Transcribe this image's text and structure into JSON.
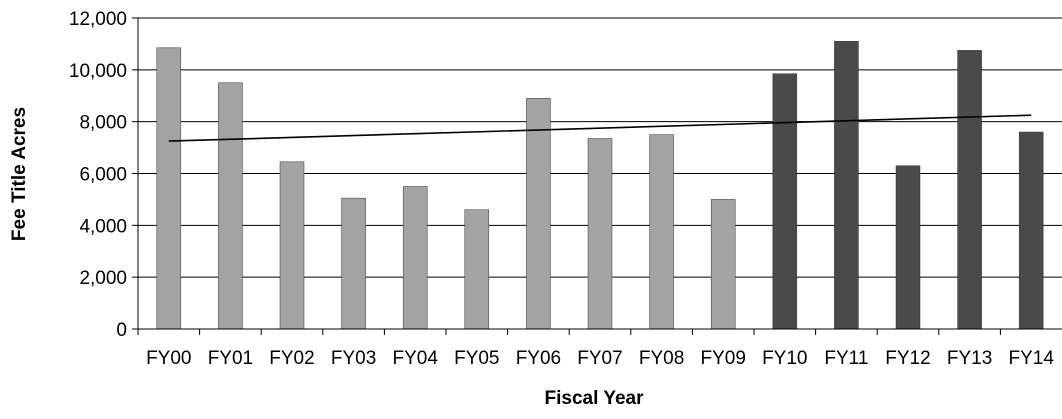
{
  "chart_data": {
    "type": "bar",
    "title": "",
    "xlabel": "Fiscal Year",
    "ylabel": "Fee Title Acres",
    "categories": [
      "FY00",
      "FY01",
      "FY02",
      "FY03",
      "FY04",
      "FY05",
      "FY06",
      "FY07",
      "FY08",
      "FY09",
      "FY10",
      "FY11",
      "FY12",
      "FY13",
      "FY14"
    ],
    "values": [
      10850,
      9500,
      6450,
      5050,
      5500,
      4600,
      8900,
      7350,
      7500,
      5000,
      9850,
      11100,
      6300,
      10750,
      7600
    ],
    "ylim": [
      0,
      12000
    ],
    "yticks": [
      0,
      2000,
      4000,
      6000,
      8000,
      10000,
      12000
    ],
    "ytick_labels": [
      "0",
      "2,000",
      "4,000",
      "6,000",
      "8,000",
      "10,000",
      "12,000"
    ],
    "trendline": {
      "start": 7250,
      "end": 8250
    },
    "grid": true,
    "legend": "none",
    "colors": {
      "light_bar": "#a3a3a3",
      "dark_bar": "#4a4a4a",
      "light_bar_count": 10,
      "grid": "#000000",
      "trendline": "#000000"
    }
  }
}
